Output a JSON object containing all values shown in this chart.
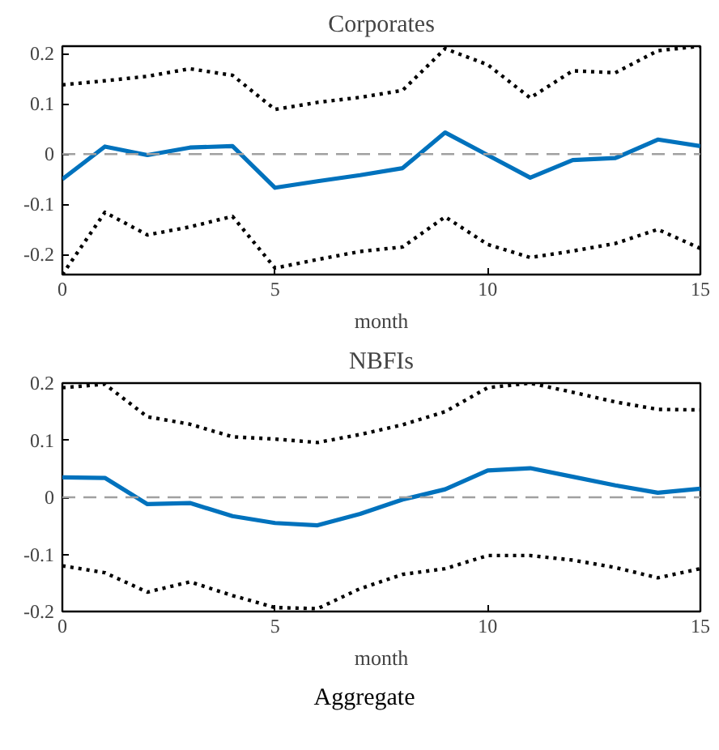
{
  "chart_data": [
    {
      "type": "line",
      "title": "Corporates",
      "xlabel": "month",
      "x": [
        0,
        1,
        2,
        3,
        4,
        5,
        6,
        7,
        8,
        9,
        10,
        11,
        12,
        13,
        14,
        15
      ],
      "xlim": [
        0,
        15
      ],
      "xticks": [
        0,
        5,
        10,
        15
      ],
      "ylim": [
        -0.24,
        0.215
      ],
      "yticks": [
        -0.2,
        -0.1,
        0,
        0.1,
        0.2
      ],
      "grid": false,
      "ref_lines": [
        {
          "axis": "y",
          "value": 0,
          "color": "#a0a0a0",
          "line_style": "dashed"
        }
      ],
      "series": [
        {
          "color": "#000000",
          "line_style": "dotted",
          "values": [
            0.138,
            0.146,
            0.155,
            0.17,
            0.157,
            0.089,
            0.103,
            0.113,
            0.127,
            0.21,
            0.178,
            0.112,
            0.166,
            0.162,
            0.206,
            0.215
          ]
        },
        {
          "color": "#0072bd",
          "line_style": "solid",
          "values": [
            -0.05,
            0.015,
            -0.002,
            0.013,
            0.016,
            -0.067,
            -0.054,
            -0.042,
            -0.028,
            0.043,
            -0.002,
            -0.047,
            -0.012,
            -0.008,
            0.029,
            0.016
          ]
        },
        {
          "color": "#000000",
          "line_style": "dotted",
          "values": [
            -0.24,
            -0.116,
            -0.161,
            -0.145,
            -0.124,
            -0.227,
            -0.21,
            -0.194,
            -0.185,
            -0.125,
            -0.18,
            -0.206,
            -0.193,
            -0.178,
            -0.15,
            -0.188
          ]
        }
      ]
    },
    {
      "type": "line",
      "title": "NBFIs",
      "xlabel": "month",
      "x": [
        0,
        1,
        2,
        3,
        4,
        5,
        6,
        7,
        8,
        9,
        10,
        11,
        12,
        13,
        14,
        15
      ],
      "xlim": [
        0,
        15
      ],
      "xticks": [
        0,
        5,
        10,
        15
      ],
      "ylim": [
        -0.2,
        0.2
      ],
      "yticks": [
        -0.2,
        -0.1,
        0,
        0.1,
        0.2
      ],
      "grid": false,
      "ref_lines": [
        {
          "axis": "y",
          "value": 0,
          "color": "#a0a0a0",
          "line_style": "dashed"
        }
      ],
      "series": [
        {
          "color": "#000000",
          "line_style": "dotted",
          "values": [
            0.192,
            0.198,
            0.141,
            0.128,
            0.106,
            0.102,
            0.096,
            0.11,
            0.127,
            0.15,
            0.192,
            0.2,
            0.184,
            0.167,
            0.154,
            0.153
          ]
        },
        {
          "color": "#0072bd",
          "line_style": "solid",
          "values": [
            0.035,
            0.034,
            -0.012,
            -0.01,
            -0.033,
            -0.045,
            -0.049,
            -0.029,
            -0.004,
            0.014,
            0.047,
            0.051,
            0.036,
            0.021,
            0.008,
            0.015
          ]
        },
        {
          "color": "#000000",
          "line_style": "dotted",
          "values": [
            -0.12,
            -0.132,
            -0.166,
            -0.148,
            -0.172,
            -0.193,
            -0.195,
            -0.16,
            -0.135,
            -0.125,
            -0.102,
            -0.102,
            -0.11,
            -0.123,
            -0.141,
            -0.125
          ]
        }
      ]
    },
    {
      "type": "other",
      "title": "Aggregate"
    }
  ]
}
